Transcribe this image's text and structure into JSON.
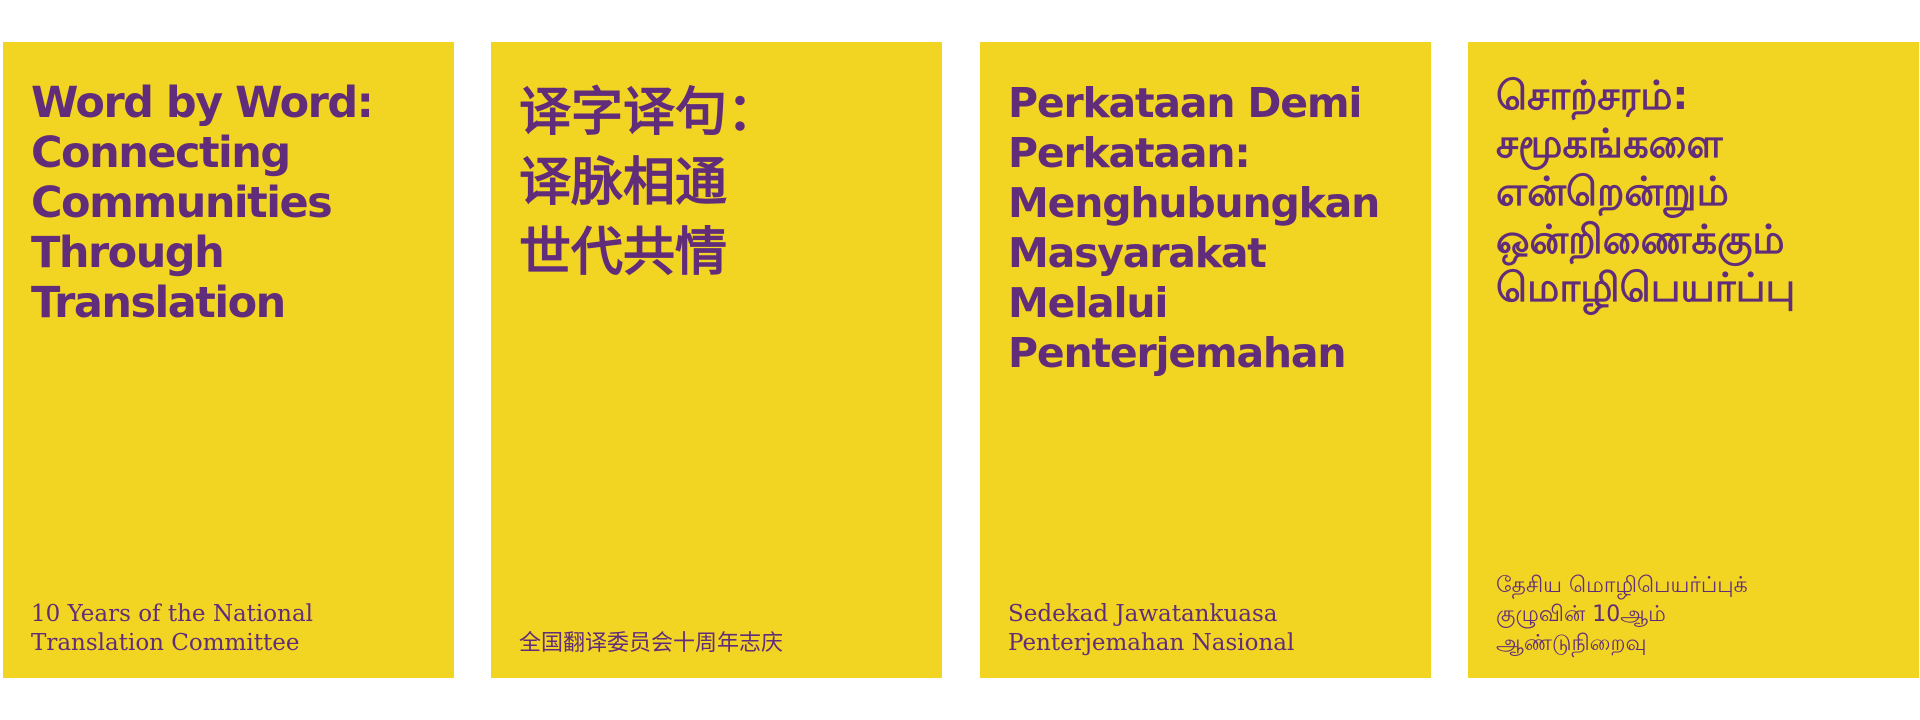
{
  "colors": {
    "card_background": "#f2d423",
    "text": "#612d7b",
    "page_background": "#ffffff"
  },
  "cards": [
    {
      "title": "Word by Word:\nConnecting\nCommunities\nThrough\nTranslation",
      "subtitle": "10 Years of the National\nTranslation Committee"
    },
    {
      "title": "译字译句：\n译脉相通\n世代共情",
      "subtitle": "全国翻译委员会十周年志庆"
    },
    {
      "title": "Perkataan Demi\nPerkataan:\nMenghubungkan\nMasyarakat\nMelalui\nPenterjemahan",
      "subtitle": "Sedekad Jawatankuasa\nPenterjemahan Nasional"
    },
    {
      "title": "சொற்சரம்:\nசமூகங்களை\nஎன்றென்றும்\nஒன்றிணைக்கும்\nமொழிபெயர்ப்பு",
      "subtitle": "தேசிய மொழிபெயர்ப்புக்\nகுழுவின் 10ஆம்\nஆண்டுநிறைவு"
    }
  ]
}
